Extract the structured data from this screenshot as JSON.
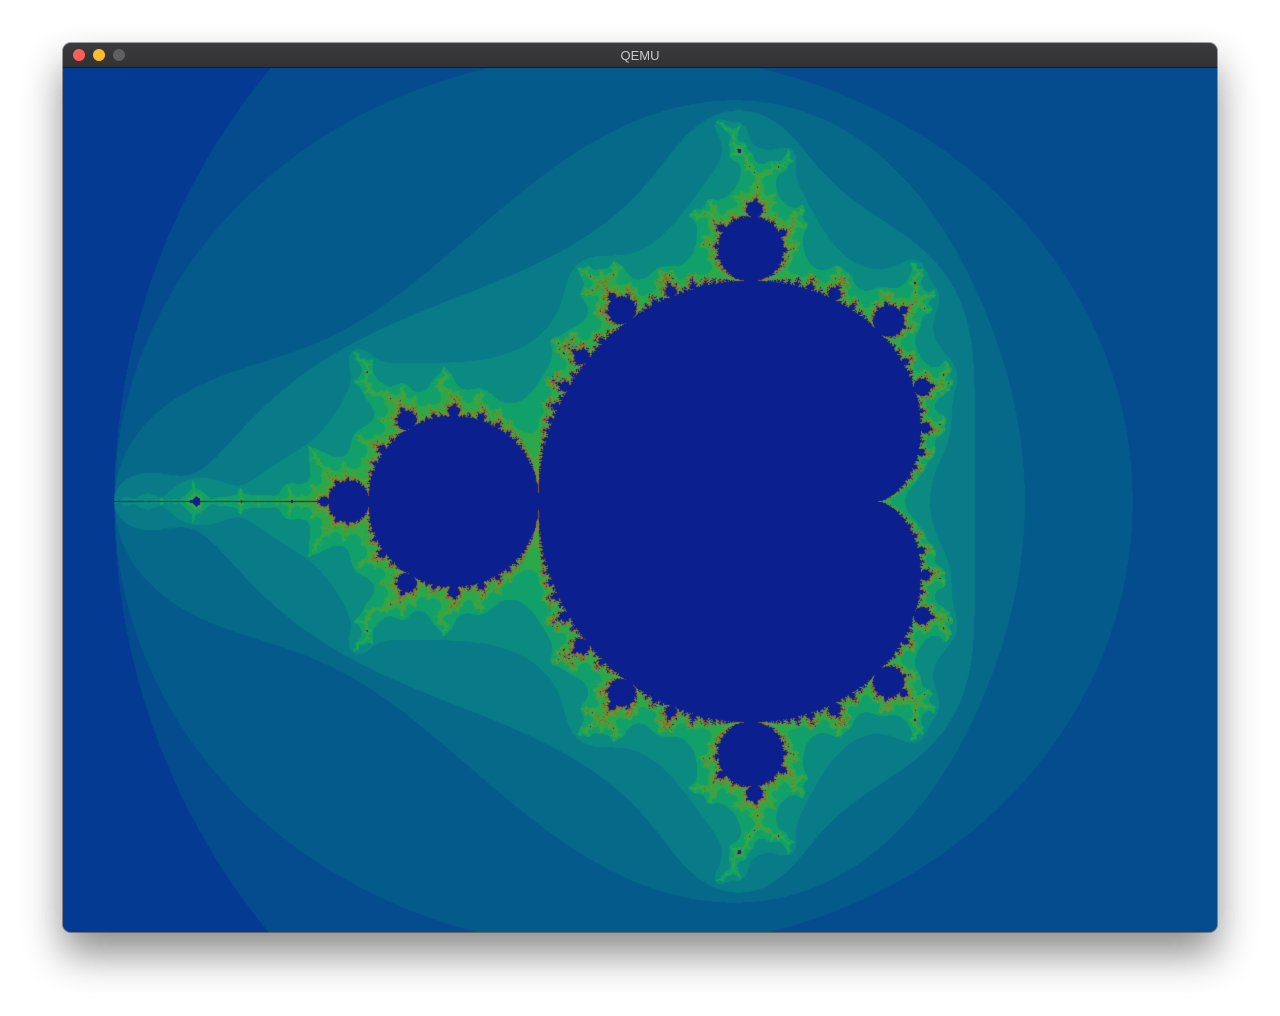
{
  "window": {
    "title": "QEMU",
    "buttons": {
      "close_color": "#fe5f57",
      "minimize_color": "#febc2e",
      "zoom_color": "#5f5f61"
    }
  },
  "display": {
    "content": "mandelbrot-fractal",
    "palette": {
      "set_color": "#0b1f8e",
      "band_colors": [
        "#043a92",
        "#044c8e",
        "#055a8c",
        "#06698a",
        "#087a88",
        "#0a8a80",
        "#12a06a",
        "#2aa84a",
        "#4aa03a",
        "#7a8a30",
        "#8a5a2e"
      ]
    }
  }
}
